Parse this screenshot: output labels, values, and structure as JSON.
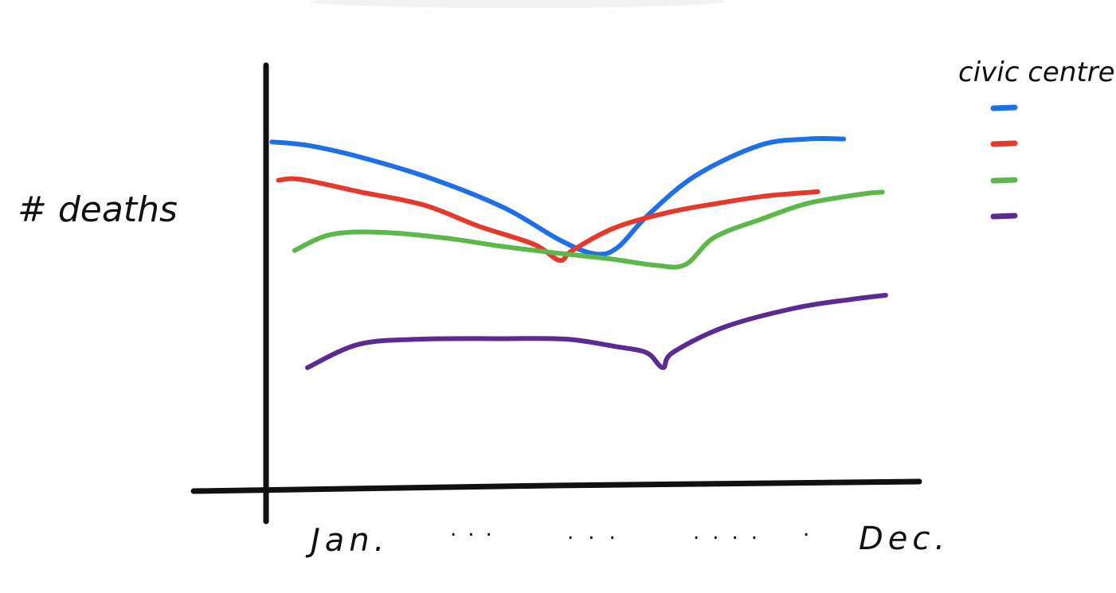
{
  "chart_data": {
    "type": "line",
    "title": "",
    "ylabel": "# deaths",
    "xlabel": "",
    "x_start_label": "Jan.",
    "x_end_label": "Dec.",
    "x_ellipsis_groups": [
      "...",
      "...",
      "....",
      "."
    ],
    "xlim": [
      1,
      12
    ],
    "ylim": [
      0,
      10
    ],
    "legend_title": "civic centre",
    "legend_position": "top-right",
    "series": [
      {
        "color": "#1f6fe6",
        "points": [
          [
            1.25,
            8.2
          ],
          [
            1.8,
            8.12
          ],
          [
            2.6,
            7.85
          ],
          [
            3.7,
            7.35
          ],
          [
            4.85,
            6.65
          ],
          [
            5.7,
            5.9
          ],
          [
            6.25,
            5.57
          ],
          [
            6.6,
            5.72
          ],
          [
            7.05,
            6.45
          ],
          [
            7.8,
            7.4
          ],
          [
            8.8,
            8.12
          ],
          [
            9.55,
            8.27
          ],
          [
            10.1,
            8.27
          ]
        ]
      },
      {
        "color": "#e5392b",
        "points": [
          [
            1.35,
            7.3
          ],
          [
            1.7,
            7.32
          ],
          [
            2.6,
            7.03
          ],
          [
            3.6,
            6.72
          ],
          [
            4.45,
            6.22
          ],
          [
            5.3,
            5.8
          ],
          [
            5.7,
            5.42
          ],
          [
            5.9,
            5.65
          ],
          [
            6.55,
            6.18
          ],
          [
            7.4,
            6.55
          ],
          [
            8.2,
            6.77
          ],
          [
            8.9,
            6.93
          ],
          [
            9.7,
            7.03
          ]
        ]
      },
      {
        "color": "#5cb848",
        "points": [
          [
            1.6,
            5.65
          ],
          [
            2.15,
            6.02
          ],
          [
            2.9,
            6.08
          ],
          [
            3.9,
            5.95
          ],
          [
            4.8,
            5.75
          ],
          [
            5.6,
            5.6
          ],
          [
            6.5,
            5.45
          ],
          [
            7.2,
            5.3
          ],
          [
            7.65,
            5.32
          ],
          [
            8.1,
            5.96
          ],
          [
            8.85,
            6.4
          ],
          [
            9.55,
            6.76
          ],
          [
            10.4,
            6.98
          ],
          [
            10.7,
            7.02
          ]
        ]
      },
      {
        "color": "#5b2b93",
        "points": [
          [
            1.8,
            2.9
          ],
          [
            2.6,
            3.45
          ],
          [
            3.6,
            3.57
          ],
          [
            4.8,
            3.58
          ],
          [
            5.8,
            3.57
          ],
          [
            6.55,
            3.4
          ],
          [
            7.05,
            3.25
          ],
          [
            7.3,
            2.9
          ],
          [
            7.45,
            3.25
          ],
          [
            8.25,
            3.85
          ],
          [
            9.35,
            4.3
          ],
          [
            10.2,
            4.5
          ],
          [
            10.75,
            4.6
          ]
        ]
      }
    ],
    "grid": false
  }
}
